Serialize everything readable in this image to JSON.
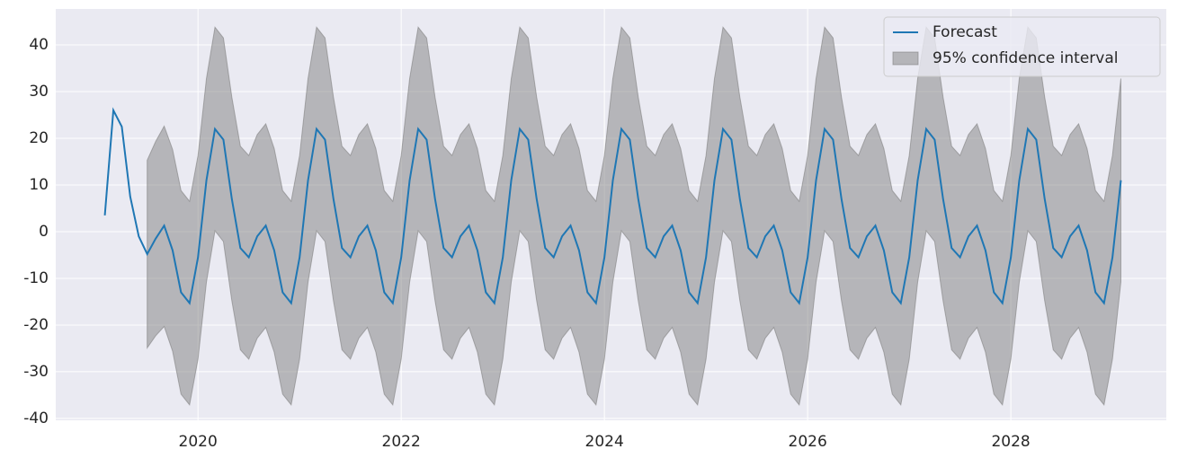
{
  "chart_data": {
    "type": "line",
    "x": [
      2019.083,
      2019.167,
      2019.25,
      2019.333,
      2019.417,
      2019.5,
      2019.583,
      2019.667,
      2019.75,
      2019.833,
      2019.917,
      2020.0,
      2020.083,
      2020.167,
      2020.25,
      2020.333,
      2020.417,
      2020.5,
      2020.583,
      2020.667,
      2020.75,
      2020.833,
      2020.917,
      2021.0,
      2021.083,
      2021.167,
      2021.25,
      2021.333,
      2021.417,
      2021.5,
      2021.583,
      2021.667,
      2021.75,
      2021.833,
      2021.917,
      2022.0,
      2022.083,
      2022.167,
      2022.25,
      2022.333,
      2022.417,
      2022.5,
      2022.583,
      2022.667,
      2022.75,
      2022.833,
      2022.917,
      2023.0,
      2023.083,
      2023.167,
      2023.25,
      2023.333,
      2023.417,
      2023.5,
      2023.583,
      2023.667,
      2023.75,
      2023.833,
      2023.917,
      2024.0,
      2024.083,
      2024.167,
      2024.25,
      2024.333,
      2024.417,
      2024.5,
      2024.583,
      2024.667,
      2024.75,
      2024.833,
      2024.917,
      2025.0,
      2025.083,
      2025.167,
      2025.25,
      2025.333,
      2025.417,
      2025.5,
      2025.583,
      2025.667,
      2025.75,
      2025.833,
      2025.917,
      2026.0,
      2026.083,
      2026.167,
      2026.25,
      2026.333,
      2026.417,
      2026.5,
      2026.583,
      2026.667,
      2026.75,
      2026.833,
      2026.917,
      2027.0,
      2027.083,
      2027.167,
      2027.25,
      2027.333,
      2027.417,
      2027.5,
      2027.583,
      2027.667,
      2027.75,
      2027.833,
      2027.917,
      2028.0,
      2028.083,
      2028.167,
      2028.25,
      2028.333,
      2028.417,
      2028.5,
      2028.583,
      2028.667,
      2028.75,
      2028.833,
      2028.917,
      2029.0,
      2029.083
    ],
    "series": [
      {
        "name": "Forecast",
        "color": "#1f77b4",
        "values": [
          3.5,
          26,
          22.5,
          7.5,
          -1,
          -4.8,
          -1.5,
          1.3,
          -4,
          -13,
          -15.3,
          -5.5,
          11,
          22,
          19.7,
          7,
          -3.5,
          -5.5,
          -1,
          1.3,
          -4,
          -13,
          -15.3,
          -5.5,
          11,
          22,
          19.7,
          7,
          -3.5,
          -5.5,
          -1,
          1.3,
          -4,
          -13,
          -15.3,
          -5.5,
          11,
          22,
          19.7,
          7,
          -3.5,
          -5.5,
          -1,
          1.3,
          -4,
          -13,
          -15.3,
          -5.5,
          11,
          22,
          19.7,
          7,
          -3.5,
          -5.5,
          -1,
          1.3,
          -4,
          -13,
          -15.3,
          -5.5,
          11,
          22,
          19.7,
          7,
          -3.5,
          -5.5,
          -1,
          1.3,
          -4,
          -13,
          -15.3,
          -5.5,
          11,
          22,
          19.7,
          7,
          -3.5,
          -5.5,
          -1,
          1.3,
          -4,
          -13,
          -15.3,
          -5.5,
          11,
          22,
          19.7,
          7,
          -3.5,
          -5.5,
          -1,
          1.3,
          -4,
          -13,
          -15.3,
          -5.5,
          11,
          22,
          19.7,
          7,
          -3.5,
          -5.5,
          -1,
          1.3,
          -4,
          -13,
          -15.3,
          -5.5,
          11,
          22,
          19.7,
          7,
          -3.5,
          -5.5,
          -1,
          1.3,
          -4,
          -13,
          -15.3,
          -5.5,
          11
        ]
      }
    ],
    "band": {
      "name": "95% confidence interval",
      "color": "#808080",
      "upper": [
        null,
        null,
        null,
        null,
        null,
        15.3,
        19.3,
        22.6,
        17.6,
        8.8,
        6.5,
        16.3,
        32.8,
        43.8,
        41.5,
        28.8,
        18.3,
        16.3,
        20.8,
        23.1,
        17.8,
        8.8,
        6.5,
        16.3,
        32.8,
        43.8,
        41.5,
        28.8,
        18.3,
        16.3,
        20.8,
        23.1,
        17.8,
        8.8,
        6.5,
        16.3,
        32.8,
        43.8,
        41.5,
        28.8,
        18.3,
        16.3,
        20.8,
        23.1,
        17.8,
        8.8,
        6.5,
        16.3,
        32.8,
        43.8,
        41.5,
        28.8,
        18.3,
        16.3,
        20.8,
        23.1,
        17.8,
        8.8,
        6.5,
        16.3,
        32.8,
        43.8,
        41.5,
        28.8,
        18.3,
        16.3,
        20.8,
        23.1,
        17.8,
        8.8,
        6.5,
        16.3,
        32.8,
        43.8,
        41.5,
        28.8,
        18.3,
        16.3,
        20.8,
        23.1,
        17.8,
        8.8,
        6.5,
        16.3,
        32.8,
        43.8,
        41.5,
        28.8,
        18.3,
        16.3,
        20.8,
        23.1,
        17.8,
        8.8,
        6.5,
        16.3,
        32.8,
        43.8,
        41.5,
        28.8,
        18.3,
        16.3,
        20.8,
        23.1,
        17.8,
        8.8,
        6.5,
        16.3,
        32.8,
        43.8,
        41.5,
        28.8,
        18.3,
        16.3,
        20.8,
        23.1,
        17.8,
        8.8,
        6.5,
        16.3,
        32.8
      ],
      "lower": [
        null,
        null,
        null,
        null,
        null,
        -24.9,
        -22.3,
        -20.3,
        -25.6,
        -34.8,
        -37.1,
        -27.3,
        -10.8,
        0.2,
        -2.1,
        -14.8,
        -25.3,
        -27.3,
        -22.8,
        -20.5,
        -25.8,
        -34.8,
        -37.1,
        -27.3,
        -10.8,
        0.2,
        -2.1,
        -14.8,
        -25.3,
        -27.3,
        -22.8,
        -20.5,
        -25.8,
        -34.8,
        -37.1,
        -27.3,
        -10.8,
        0.2,
        -2.1,
        -14.8,
        -25.3,
        -27.3,
        -22.8,
        -20.5,
        -25.8,
        -34.8,
        -37.1,
        -27.3,
        -10.8,
        0.2,
        -2.1,
        -14.8,
        -25.3,
        -27.3,
        -22.8,
        -20.5,
        -25.8,
        -34.8,
        -37.1,
        -27.3,
        -10.8,
        0.2,
        -2.1,
        -14.8,
        -25.3,
        -27.3,
        -22.8,
        -20.5,
        -25.8,
        -34.8,
        -37.1,
        -27.3,
        -10.8,
        0.2,
        -2.1,
        -14.8,
        -25.3,
        -27.3,
        -22.8,
        -20.5,
        -25.8,
        -34.8,
        -37.1,
        -27.3,
        -10.8,
        0.2,
        -2.1,
        -14.8,
        -25.3,
        -27.3,
        -22.8,
        -20.5,
        -25.8,
        -34.8,
        -37.1,
        -27.3,
        -10.8,
        0.2,
        -2.1,
        -14.8,
        -25.3,
        -27.3,
        -22.8,
        -20.5,
        -25.8,
        -34.8,
        -37.1,
        -27.3,
        -10.8,
        0.2,
        -2.1,
        -14.8,
        -25.3,
        -27.3,
        -22.8,
        -20.5,
        -25.8,
        -34.8,
        -37.1,
        -27.3,
        -10.8
      ]
    },
    "xlim": [
      2018.6,
      2029.53
    ],
    "xticks": [
      2020,
      2022,
      2024,
      2026,
      2028
    ],
    "ylim": [
      -40.4,
      47.7
    ],
    "yticks": [
      -40,
      -30,
      -20,
      -10,
      0,
      10,
      20,
      30,
      40
    ],
    "grid": true,
    "legend": "upper right"
  }
}
